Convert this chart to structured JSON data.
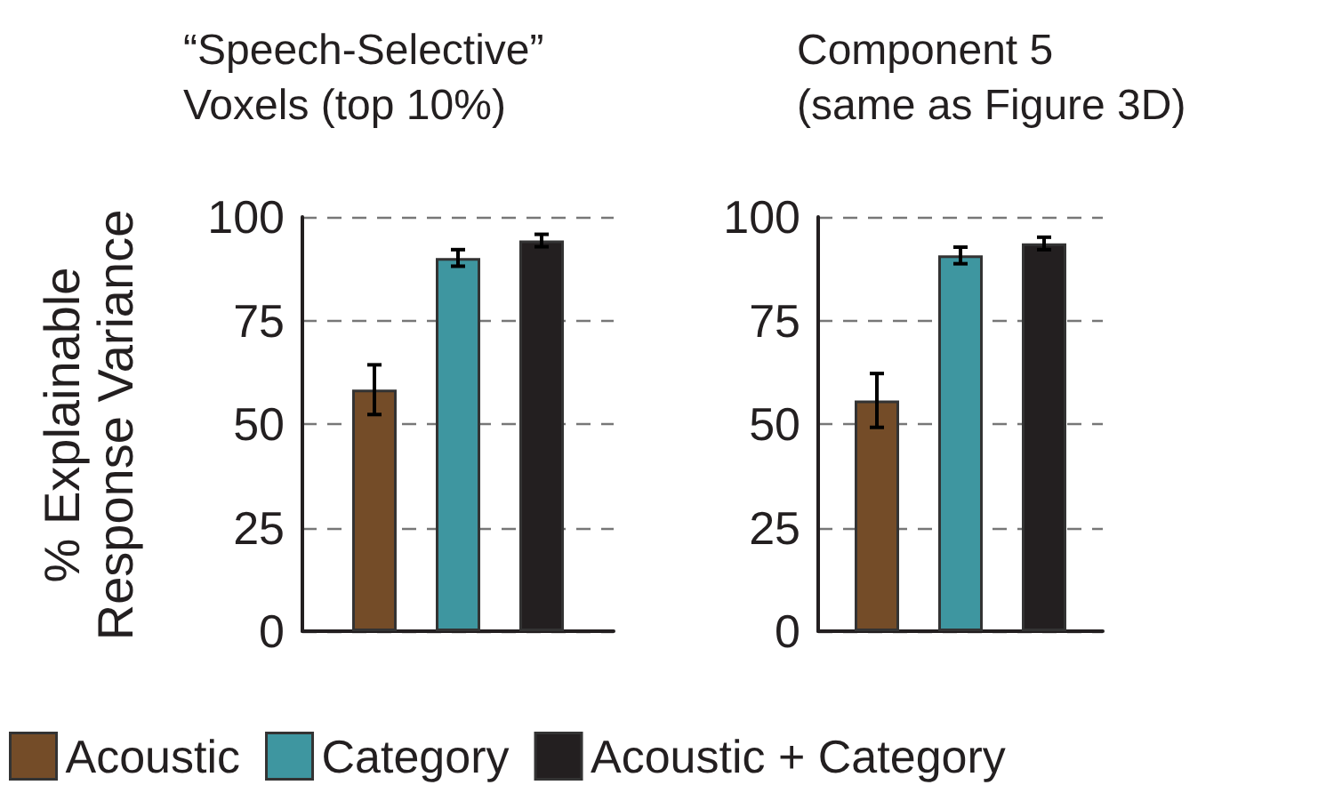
{
  "chart_data": [
    {
      "type": "bar",
      "title": "“Speech-Selective”\nVoxels (top 10%)",
      "ylabel": "% Explainable\nResponse Variance",
      "categories": [
        null
      ],
      "ylim": [
        0,
        100
      ],
      "yticks": [
        0,
        25,
        50,
        75,
        100
      ],
      "grid": "y",
      "legend": "bottom",
      "series": [
        {
          "name": "Acoustic",
          "color": "#744c28",
          "values": [
            58.3
          ],
          "errors": [
            6
          ]
        },
        {
          "name": "Category",
          "color": "#3e96a0",
          "values": [
            90.1
          ],
          "errors": [
            2
          ]
        },
        {
          "name": "Acoustic + Category",
          "color": "#231f20",
          "values": [
            94.3
          ],
          "errors": [
            1.5
          ]
        }
      ]
    },
    {
      "type": "bar",
      "title": "Component 5\n(same as Figure 3D)",
      "categories": [
        null
      ],
      "ylim": [
        0,
        100
      ],
      "yticks": [
        0,
        25,
        50,
        75,
        100
      ],
      "grid": "y",
      "legend": false,
      "series": [
        {
          "color": "#744c28",
          "values": [
            55.7
          ],
          "errors": [
            6.5
          ]
        },
        {
          "color": "#3e96a0",
          "values": [
            90.7
          ],
          "errors": [
            2
          ]
        },
        {
          "color": "#231f20",
          "values": [
            93.6
          ],
          "errors": [
            1.5
          ]
        }
      ]
    }
  ]
}
